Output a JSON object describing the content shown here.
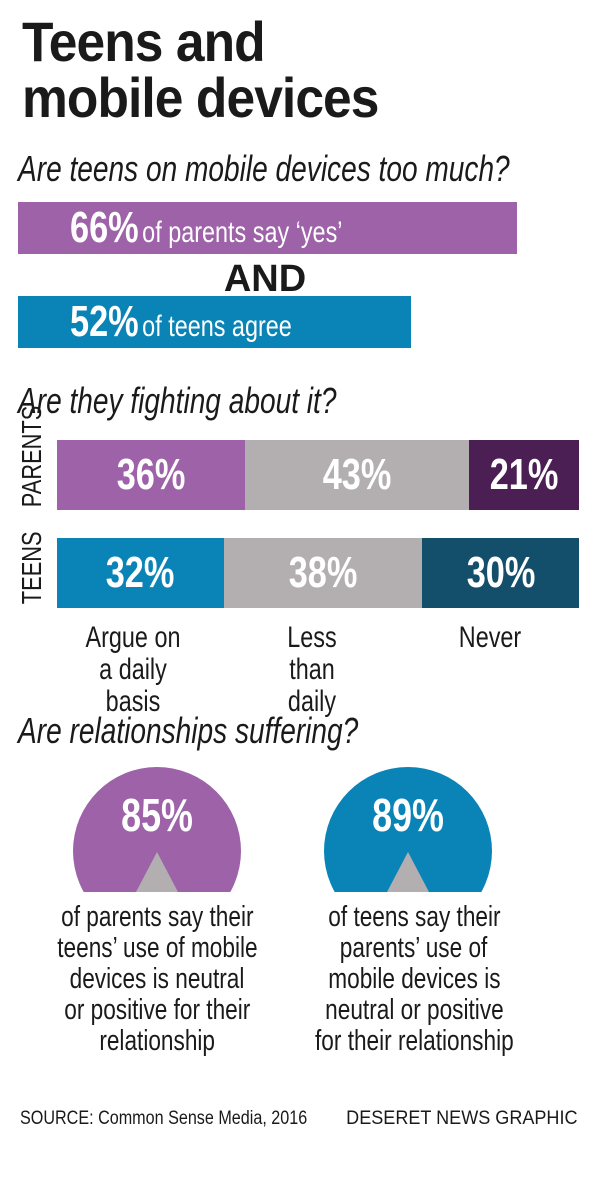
{
  "title_line1": "Teens and",
  "title_line2": "mobile devices",
  "q1": "Are teens on mobile devices too much?",
  "q2": "Are they fighting about it?",
  "q3": "Are relationships suffering?",
  "and": "AND",
  "colors": {
    "purple": "#9d62a8",
    "blue": "#0a84b6",
    "gray": "#b3afb0",
    "dark_purple": "#4b1e54",
    "dark_blue": "#134e6b"
  },
  "chart_data": [
    {
      "type": "bar",
      "title": "Are teens on mobile devices too much?",
      "series": [
        {
          "name": "parents",
          "value": 66,
          "label": "66%",
          "text": "of parents say ‘yes’"
        },
        {
          "name": "teens",
          "value": 52,
          "label": "52%",
          "text": "of teens agree"
        }
      ]
    },
    {
      "type": "bar",
      "stacked": true,
      "title": "Are they fighting about it?",
      "categories": [
        "Argue on a daily basis",
        "Less than daily",
        "Never"
      ],
      "rows": [
        {
          "name": "PARENTS",
          "values": [
            36,
            43,
            21
          ],
          "labels": [
            "36%",
            "43%",
            "21%"
          ]
        },
        {
          "name": "TEENS",
          "values": [
            32,
            38,
            30
          ],
          "labels": [
            "32%",
            "38%",
            "30%"
          ]
        }
      ]
    },
    {
      "type": "pie",
      "title": "Are relationships suffering?",
      "items": [
        {
          "value": 85,
          "label": "85%",
          "caption": [
            "of parents say their",
            "teens’ use of mobile",
            "devices is neutral",
            "or positive for their",
            "relationship"
          ]
        },
        {
          "value": 89,
          "label": "89%",
          "caption": [
            "of teens say their",
            "parents’ use of",
            "mobile devices is",
            "neutral or positive",
            "for their relationship"
          ]
        }
      ]
    }
  ],
  "source": "SOURCE: Common Sense Media, 2016",
  "credit": "DESERET NEWS GRAPHIC"
}
